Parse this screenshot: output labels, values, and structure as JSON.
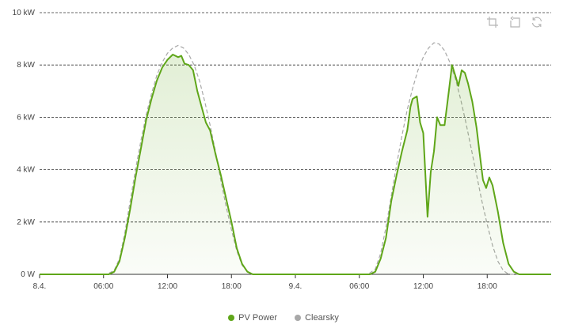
{
  "chart_data": {
    "type": "area",
    "title": "",
    "xlabel": "",
    "ylabel": "",
    "ylim": [
      0,
      10
    ],
    "yticks": [
      "0 W",
      "2 kW",
      "4 kW",
      "6 kW",
      "8 kW",
      "10 kW"
    ],
    "xlim": [
      0,
      48
    ],
    "xticks": [
      {
        "x": 0,
        "label": "8.4."
      },
      {
        "x": 6,
        "label": "06:00"
      },
      {
        "x": 12,
        "label": "12:00"
      },
      {
        "x": 18,
        "label": "18:00"
      },
      {
        "x": 24,
        "label": "9.4."
      },
      {
        "x": 30,
        "label": "06:00"
      },
      {
        "x": 36,
        "label": "12:00"
      },
      {
        "x": 42,
        "label": "18:00"
      }
    ],
    "grid": true,
    "legend_position": "bottom-center",
    "series": [
      {
        "name": "PV Power",
        "color": "#5fa619",
        "fill": true,
        "points": [
          [
            0,
            0
          ],
          [
            6.5,
            0
          ],
          [
            7,
            0.1
          ],
          [
            7.5,
            0.5
          ],
          [
            8,
            1.4
          ],
          [
            8.5,
            2.5
          ],
          [
            9,
            3.7
          ],
          [
            9.5,
            4.8
          ],
          [
            10,
            5.9
          ],
          [
            10.5,
            6.7
          ],
          [
            11,
            7.4
          ],
          [
            11.5,
            7.9
          ],
          [
            12,
            8.2
          ],
          [
            12.5,
            8.4
          ],
          [
            13,
            8.3
          ],
          [
            13.3,
            8.35
          ],
          [
            13.6,
            8.05
          ],
          [
            14,
            8.0
          ],
          [
            14.4,
            7.8
          ],
          [
            14.8,
            7.0
          ],
          [
            15.2,
            6.4
          ],
          [
            15.6,
            5.8
          ],
          [
            16,
            5.5
          ],
          [
            16.5,
            4.6
          ],
          [
            17,
            3.8
          ],
          [
            17.5,
            2.9
          ],
          [
            18,
            2.0
          ],
          [
            18.5,
            1.0
          ],
          [
            19,
            0.4
          ],
          [
            19.5,
            0.1
          ],
          [
            20,
            0
          ],
          [
            24,
            0
          ],
          [
            31,
            0
          ],
          [
            31.5,
            0.1
          ],
          [
            32,
            0.6
          ],
          [
            32.5,
            1.4
          ],
          [
            33,
            2.8
          ],
          [
            33.5,
            3.8
          ],
          [
            34,
            4.7
          ],
          [
            34.5,
            5.5
          ],
          [
            34.8,
            6.4
          ],
          [
            35,
            6.7
          ],
          [
            35.4,
            6.8
          ],
          [
            35.7,
            5.8
          ],
          [
            36,
            5.4
          ],
          [
            36.4,
            2.2
          ],
          [
            36.7,
            3.9
          ],
          [
            37,
            4.7
          ],
          [
            37.3,
            6.0
          ],
          [
            37.6,
            5.7
          ],
          [
            38,
            5.7
          ],
          [
            38.4,
            7.0
          ],
          [
            38.7,
            8.0
          ],
          [
            39,
            7.6
          ],
          [
            39.3,
            7.2
          ],
          [
            39.6,
            7.8
          ],
          [
            39.9,
            7.7
          ],
          [
            40.2,
            7.3
          ],
          [
            40.6,
            6.6
          ],
          [
            41,
            5.6
          ],
          [
            41.3,
            4.6
          ],
          [
            41.6,
            3.6
          ],
          [
            41.9,
            3.3
          ],
          [
            42.2,
            3.7
          ],
          [
            42.5,
            3.4
          ],
          [
            43,
            2.4
          ],
          [
            43.5,
            1.2
          ],
          [
            44,
            0.4
          ],
          [
            44.5,
            0.1
          ],
          [
            45,
            0
          ],
          [
            48,
            0
          ]
        ]
      },
      {
        "name": "Clearsky",
        "color": "#a8a8a8",
        "fill": false,
        "dashed": true,
        "points": [
          [
            0,
            0
          ],
          [
            6.3,
            0
          ],
          [
            7,
            0.15
          ],
          [
            7.5,
            0.6
          ],
          [
            8,
            1.6
          ],
          [
            8.5,
            2.8
          ],
          [
            9,
            4.0
          ],
          [
            9.5,
            5.1
          ],
          [
            10,
            6.1
          ],
          [
            10.5,
            6.9
          ],
          [
            11,
            7.6
          ],
          [
            11.5,
            8.1
          ],
          [
            12,
            8.45
          ],
          [
            12.5,
            8.65
          ],
          [
            13,
            8.75
          ],
          [
            13.5,
            8.65
          ],
          [
            14,
            8.4
          ],
          [
            14.5,
            8.0
          ],
          [
            15,
            7.4
          ],
          [
            15.5,
            6.6
          ],
          [
            16,
            5.7
          ],
          [
            16.5,
            4.7
          ],
          [
            17,
            3.6
          ],
          [
            17.5,
            2.6
          ],
          [
            18,
            1.7
          ],
          [
            18.5,
            0.9
          ],
          [
            19,
            0.35
          ],
          [
            19.5,
            0.1
          ],
          [
            20,
            0
          ],
          [
            24,
            0
          ],
          [
            30.8,
            0
          ],
          [
            31.5,
            0.2
          ],
          [
            32,
            0.8
          ],
          [
            32.5,
            1.8
          ],
          [
            33,
            3.0
          ],
          [
            33.5,
            4.2
          ],
          [
            34,
            5.3
          ],
          [
            34.5,
            6.3
          ],
          [
            35,
            7.1
          ],
          [
            35.5,
            7.8
          ],
          [
            36,
            8.3
          ],
          [
            36.5,
            8.65
          ],
          [
            37,
            8.85
          ],
          [
            37.5,
            8.8
          ],
          [
            38,
            8.55
          ],
          [
            38.5,
            8.1
          ],
          [
            39,
            7.5
          ],
          [
            39.5,
            6.7
          ],
          [
            40,
            5.8
          ],
          [
            40.5,
            4.8
          ],
          [
            41,
            3.8
          ],
          [
            41.5,
            2.8
          ],
          [
            42,
            1.9
          ],
          [
            42.5,
            1.1
          ],
          [
            43,
            0.5
          ],
          [
            43.5,
            0.15
          ],
          [
            44,
            0
          ],
          [
            48,
            0
          ]
        ]
      }
    ]
  },
  "legend": {
    "items": [
      {
        "label": "PV Power",
        "color": "#5fa619"
      },
      {
        "label": "Clearsky",
        "color": "#a8a8a8"
      }
    ]
  },
  "toolbar": {
    "icons": [
      "crop-icon",
      "undo-zoom-icon",
      "refresh-icon"
    ]
  }
}
